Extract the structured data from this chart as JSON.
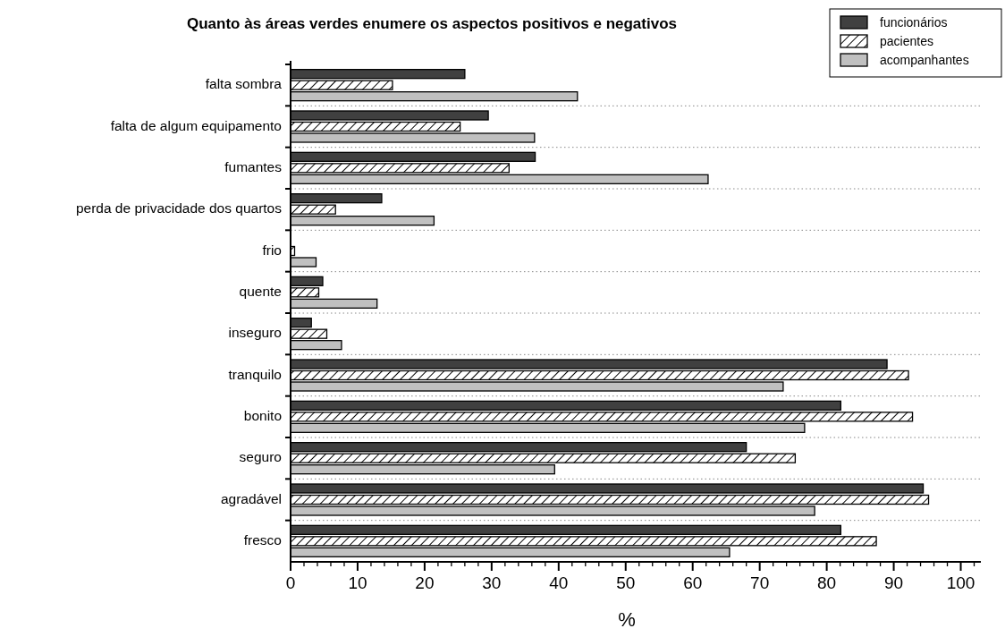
{
  "chart_data": {
    "type": "bar",
    "orientation": "horizontal",
    "title": "Quanto às áreas verdes enumere os aspectos positivos e negativos",
    "xlabel": "%",
    "categories": [
      "falta sombra",
      "falta de algum equipamento",
      "fumantes",
      "perda de privacidade dos quartos",
      "frio",
      "quente",
      "inseguro",
      "tranquilo",
      "bonito",
      "seguro",
      "agradável",
      "fresco"
    ],
    "series": [
      {
        "name": "funcionários",
        "color": "#404040",
        "values": [
          26.0,
          29.5,
          36.5,
          13.6,
          0,
          4.8,
          3.1,
          89.0,
          82.1,
          68.0,
          94.4,
          82.1
        ]
      },
      {
        "name": "pacientes",
        "color": "#ffffff",
        "values": [
          15.2,
          25.3,
          32.6,
          6.7,
          0.6,
          4.2,
          5.4,
          92.2,
          92.8,
          75.3,
          95.2,
          87.4
        ]
      },
      {
        "name": "acompanhantes",
        "color": "#c0c0c0",
        "values": [
          42.8,
          36.4,
          62.3,
          21.4,
          3.8,
          12.9,
          7.6,
          73.5,
          76.7,
          39.4,
          78.2,
          65.5
        ]
      }
    ],
    "xlim": [
      0,
      103
    ],
    "xticks": [
      0,
      {
        "value": 2,
        "label": null
      },
      {
        "value": 4,
        "label": null
      },
      {
        "value": 6,
        "label": null
      },
      {
        "value": 8,
        "label": null
      },
      10,
      {
        "value": 12,
        "label": null
      },
      {
        "value": 14,
        "label": null
      },
      {
        "value": 16,
        "label": null
      },
      {
        "value": 18,
        "label": null
      },
      20,
      {
        "value": 22,
        "label": null
      },
      {
        "value": 24,
        "label": null
      },
      {
        "value": 26,
        "label": null
      },
      {
        "value": 28,
        "label": null
      },
      30,
      {
        "value": 32,
        "label": null
      },
      {
        "value": 34,
        "label": null
      },
      {
        "value": 36,
        "label": null
      },
      {
        "value": 38,
        "label": null
      },
      40,
      {
        "value": 42,
        "label": null
      },
      {
        "value": 44,
        "label": null
      },
      {
        "value": 46,
        "label": null
      },
      {
        "value": 48,
        "label": null
      },
      50,
      {
        "value": 52,
        "label": null
      },
      {
        "value": 54,
        "label": null
      },
      {
        "value": 56,
        "label": null
      },
      {
        "value": 58,
        "label": null
      },
      60,
      {
        "value": 62,
        "label": null
      },
      {
        "value": 64,
        "label": null
      },
      {
        "value": 66,
        "label": null
      },
      {
        "value": 68,
        "label": null
      },
      70,
      {
        "value": 72,
        "label": null
      },
      {
        "value": 74,
        "label": null
      },
      {
        "value": 76,
        "label": null
      },
      {
        "value": 78,
        "label": null
      },
      80,
      {
        "value": 82,
        "label": null
      },
      {
        "value": 84,
        "label": null
      },
      {
        "value": 86,
        "label": null
      },
      {
        "value": 88,
        "label": null
      },
      90,
      {
        "value": 92,
        "label": null
      },
      {
        "value": 94,
        "label": null
      },
      {
        "value": 96,
        "label": null
      },
      {
        "value": 98,
        "label": null
      },
      100,
      {
        "value": 102,
        "label": null
      }
    ],
    "grid": "y",
    "legend": "top right"
  }
}
